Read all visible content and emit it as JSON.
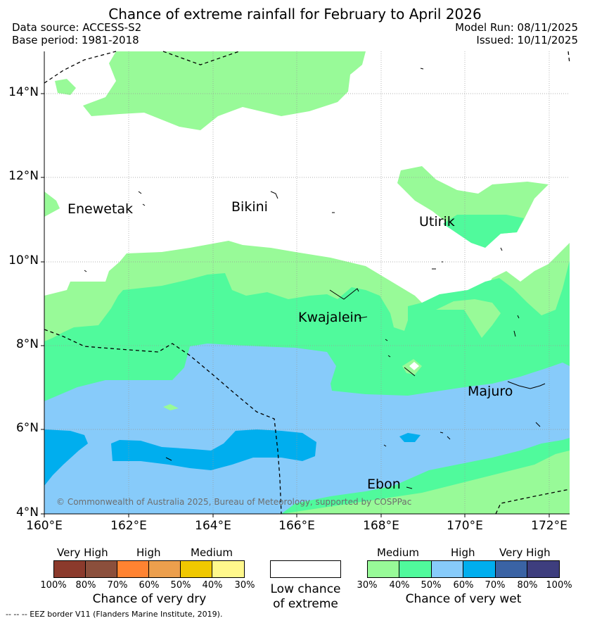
{
  "title": "Chance of extreme rainfall for February to April 2026",
  "meta": {
    "data_source": "Data source: ACCESS-S2",
    "base_period": "Base period: 1981-2018",
    "model_run": "Model Run: 08/11/2025",
    "issued": "Issued: 10/11/2025"
  },
  "axes": {
    "y_ticks": [
      "14°N",
      "12°N",
      "10°N",
      "8°N",
      "6°N",
      "4°N"
    ],
    "x_ticks": [
      "160°E",
      "162°E",
      "164°E",
      "166°E",
      "168°E",
      "170°E",
      "172°E"
    ]
  },
  "places": [
    "Enewetak",
    "Bikini",
    "Utirik",
    "Kwajalein",
    "Majuro",
    "Ebon"
  ],
  "copyright": "© Commonwealth of Australia 2025, Bureau of Meteorology, supported by COSPPac",
  "colors": {
    "wet_30_40": "#98fa98",
    "wet_40_50": "#50fa9c",
    "wet_50_60": "#87cbfa",
    "wet_60_70": "#00aeee",
    "wet_70_80": "#3a63a4",
    "wet_80_100": "#3e3e7e",
    "dry_100_80": "#8b3a2c",
    "dry_80_70": "#8b4f3c",
    "dry_70_60": "#ff8331",
    "dry_60_50": "#ec9f4d",
    "dry_50_40": "#f0c800",
    "dry_40_30": "#fff88c",
    "low_chance": "#ffffff"
  },
  "legend": {
    "dry": {
      "groups": [
        "Very High",
        "High",
        "Medium"
      ],
      "ticks": [
        "100%",
        "80%",
        "70%",
        "60%",
        "50%",
        "40%",
        "30%"
      ],
      "title": "Chance of very dry"
    },
    "low": {
      "line1": "Low chance",
      "line2": "of extreme"
    },
    "wet": {
      "groups": [
        "Medium",
        "High",
        "Very High"
      ],
      "ticks": [
        "30%",
        "40%",
        "50%",
        "60%",
        "70%",
        "80%",
        "100%"
      ],
      "title": "Chance of very wet"
    }
  },
  "footer": "--  --  -- EEZ border V11 (Flanders Marine Institute, 2019)."
}
